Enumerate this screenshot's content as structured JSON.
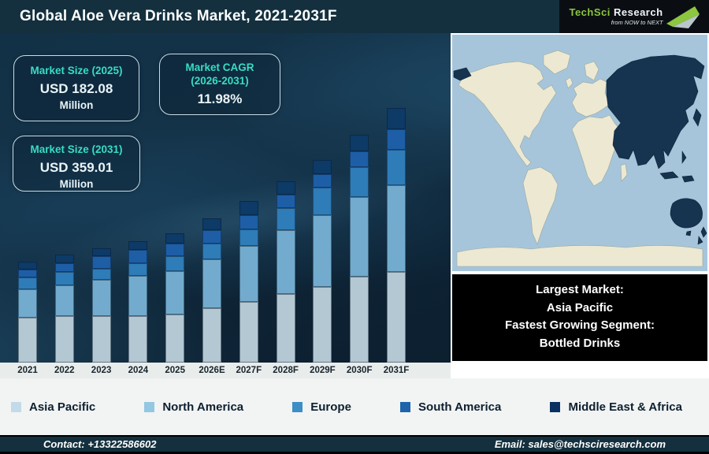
{
  "header": {
    "title": "Global Aloe Vera Drinks Market, 2021-2031F",
    "logo": {
      "brand_primary": "TechSci",
      "brand_secondary": "Research",
      "tagline": "from NOW to NEXT",
      "brand_color": "#8dc63f"
    }
  },
  "stat_boxes": {
    "market_size_2025": {
      "label": "Market Size (2025)",
      "value": "USD 182.08",
      "unit": "Million"
    },
    "market_cagr": {
      "label_line1": "Market CAGR",
      "label_line2": "(2026-2031)",
      "value": "11.98%"
    },
    "market_size_2031": {
      "label": "Market Size (2031)",
      "value": "USD 359.01",
      "unit": "Million"
    }
  },
  "chart_data": {
    "type": "bar",
    "stacked": true,
    "title": "Global Aloe Vera Drinks Market, 2021-2031F",
    "unit": "USD Million",
    "categories": [
      "2021",
      "2022",
      "2023",
      "2024",
      "2025",
      "2026E",
      "2027F",
      "2028F",
      "2029F",
      "2030F",
      "2031F"
    ],
    "series": [
      {
        "name": "Asia Pacific",
        "color": "#b3c8d3",
        "legend_color": "#c3dbe8",
        "values": [
          63.5,
          65.1,
          65.5,
          65.4,
          68.3,
          76.4,
          85.2,
          96.3,
          106.8,
          120.6,
          127.8
        ]
      },
      {
        "name": "North America",
        "color": "#72abce",
        "legend_color": "#93c7e3",
        "values": [
          39.5,
          42.9,
          51.3,
          56.5,
          60.6,
          69.1,
          79.1,
          90.4,
          101.4,
          112.6,
          122.6
        ]
      },
      {
        "name": "Europe",
        "color": "#2e7cb8",
        "legend_color": "#3d8dc6",
        "values": [
          16.5,
          18.5,
          15.9,
          17.7,
          21.0,
          22.6,
          23.8,
          31.5,
          38.4,
          42.0,
          49.7
        ]
      },
      {
        "name": "South America",
        "color": "#1d5ea7",
        "legend_color": "#1f63ab",
        "values": [
          11.5,
          12.3,
          17.7,
          19.4,
          17.5,
          19.3,
          19.9,
          18.5,
          19.2,
          21.9,
          28.7
        ]
      },
      {
        "name": "Middle East & Africa",
        "color": "#0d3a66",
        "legend_color": "#0a3161",
        "values": [
          11.0,
          12.4,
          10.6,
          12.4,
          14.7,
          16.4,
          20.4,
          18.9,
          20.4,
          23.4,
          30.2
        ]
      }
    ],
    "totals": [
      142.0,
      151.2,
      161.0,
      171.4,
      182.1,
      203.8,
      228.4,
      255.6,
      286.2,
      320.5,
      359.0
    ],
    "ylim": [
      0,
      380
    ],
    "grid": false,
    "legend_position": "bottom"
  },
  "map": {
    "ocean_color": "#a6c5da",
    "land_color": "#ede8d2",
    "highlight_color": "#16334f",
    "highlighted_region": "Asia Pacific"
  },
  "info_box": {
    "lines": [
      "Largest Market:",
      "Asia Pacific",
      "Fastest Growing Segment:",
      "Bottled Drinks"
    ]
  },
  "footer": {
    "contact": "Contact: +13322586602",
    "email": "Email: sales@techsciresearch.com"
  }
}
